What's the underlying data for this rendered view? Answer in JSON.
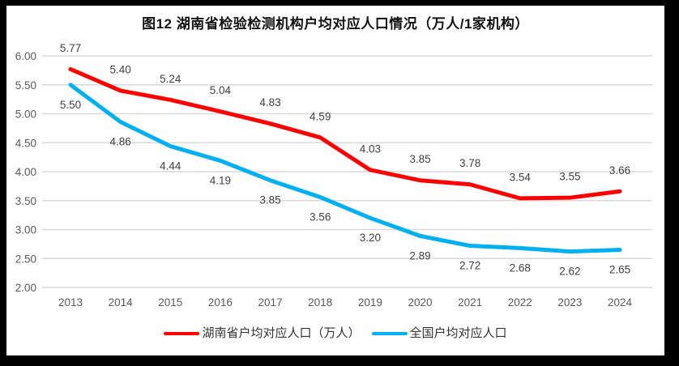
{
  "chart_data": {
    "type": "line",
    "title": "图12 湖南省检验检测机构户均对应人口情况（万人/1家机构）",
    "categories": [
      "2013",
      "2014",
      "2015",
      "2016",
      "2017",
      "2018",
      "2019",
      "2020",
      "2021",
      "2022",
      "2023",
      "2024"
    ],
    "series": [
      {
        "name": "湖南省户均对应人口（万人）",
        "color": "#FF0000",
        "values": [
          5.77,
          5.4,
          5.24,
          5.04,
          4.83,
          4.59,
          4.03,
          3.85,
          3.78,
          3.54,
          3.55,
          3.66
        ],
        "label_position": "above"
      },
      {
        "name": "全国户均对应人口",
        "color": "#00B0F0",
        "values": [
          5.5,
          4.86,
          4.44,
          4.19,
          3.85,
          3.56,
          3.2,
          2.89,
          2.72,
          2.68,
          2.62,
          2.65
        ],
        "label_position": "below"
      }
    ],
    "ylim": [
      2.0,
      6.0
    ],
    "ytick_step": 0.5,
    "ytick_labels": [
      "6.00",
      "5.50",
      "5.00",
      "4.50",
      "4.00",
      "3.50",
      "3.00",
      "2.50",
      "2.00"
    ],
    "grid": true,
    "gridline_color": "#D9D9D9",
    "axis_label_color": "#595959",
    "data_label_color": "#404040",
    "legend_position": "bottom",
    "value_label_decimals": 2
  }
}
